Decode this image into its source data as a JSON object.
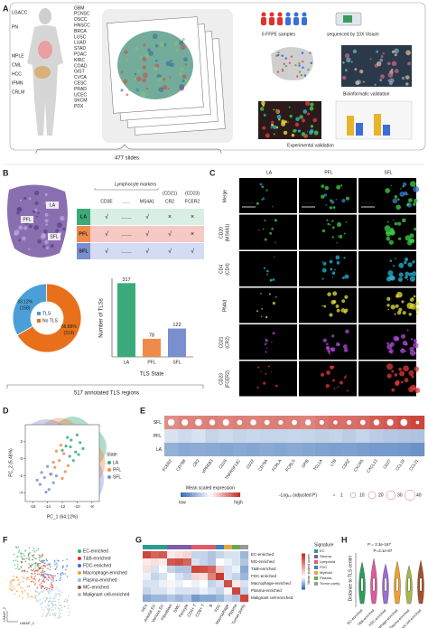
{
  "panel_labels": [
    "A",
    "B",
    "C",
    "D",
    "E",
    "F",
    "G",
    "H"
  ],
  "panel_a": {
    "cancer_types_left": [
      {
        "text": "LGACC",
        "color": "#777777"
      },
      {
        "text": "PN",
        "color": "#777777"
      },
      {
        "text": "MPLE",
        "color": "#777777"
      },
      {
        "text": "CML",
        "color": "#777777"
      },
      {
        "text": "HCC",
        "color": "#777777"
      },
      {
        "text": "IPMN",
        "color": "#3a7fc1"
      },
      {
        "text": "CRLM",
        "color": "#777777"
      }
    ],
    "cancer_types_right": [
      {
        "text": "GBM",
        "color": "#e0312b"
      },
      {
        "text": "PCNSC",
        "color": "#e0312b"
      },
      {
        "text": "OSCC",
        "color": "#e0312b"
      },
      {
        "text": "HNSCC",
        "color": "#777777"
      },
      {
        "text": "BRCA",
        "color": "#777777"
      },
      {
        "text": "LUSC",
        "color": "#f08a24"
      },
      {
        "text": "LUAD",
        "color": "#f08a24"
      },
      {
        "text": "STAD",
        "color": "#777777"
      },
      {
        "text": "PDAC",
        "color": "#3a7fc1"
      },
      {
        "text": "KIRC",
        "color": "#e0312b"
      },
      {
        "text": "COAD",
        "color": "#777777"
      },
      {
        "text": "GIST",
        "color": "#777777"
      },
      {
        "text": "CVCA",
        "color": "#f08a24"
      },
      {
        "text": "CESC",
        "color": "#f08a24"
      },
      {
        "text": "PRAD",
        "color": "#e0312b"
      },
      {
        "text": "UCEC",
        "color": "#f08a24"
      },
      {
        "text": "SKCM",
        "color": "#777777"
      },
      {
        "text": "PDX",
        "color": "#777777"
      }
    ],
    "slides": "477 slides",
    "samples": "6 FFPE samples",
    "sequencing": "sequenced by 10X Visium",
    "bioinformatic": "Bioinformatic validation",
    "experimental": "Experimental validation"
  },
  "panel_b": {
    "tissue_labels": [
      "LA",
      "PFL",
      "SFL"
    ],
    "marker_group": "Lymphocyte markers",
    "marker_aliases": [
      "(CD21)",
      "(CD23)"
    ],
    "markers": [
      "CD3E",
      "......",
      "MS4A1",
      "CR2",
      "FCER2"
    ],
    "table_rows": [
      {
        "state": "LA",
        "cells": [
          "√",
          "......",
          "√",
          "×",
          "×"
        ]
      },
      {
        "state": "PFL",
        "cells": [
          "√",
          "......",
          "√",
          "√",
          "×"
        ]
      },
      {
        "state": "SFL",
        "cells": [
          "√",
          "......",
          "√",
          "√",
          "√"
        ]
      }
    ],
    "state_colors": [
      "#3aaa7a",
      "#f08a4b",
      "#7a8fd0"
    ],
    "row_colors": [
      "#d9efe3",
      "#f6c9c4",
      "#d3dcf3"
    ],
    "summary": "517 annotated TLS regions"
  },
  "panel_c": {
    "columns": [
      "LA",
      "PFL",
      "SFL"
    ],
    "rows": [
      [
        "Merge"
      ],
      [
        "CD20",
        "(MS4A1)"
      ],
      [
        "CD4",
        "(CD4)"
      ],
      [
        "PNAd"
      ],
      [
        "CD21",
        "(CR2)"
      ],
      [
        "CD23",
        "(FCER2)"
      ]
    ],
    "scale_bar": "200μm",
    "stain_colors": [
      "#3fd24a",
      "#3fd24a",
      "#27b6d6",
      "#e6e03a",
      "#b04ad6",
      "#e03a3a"
    ]
  },
  "panel_f": {
    "legend": [
      "EC-enriched",
      "T&B-enriched",
      "FDC-enriched",
      "Macrophage-enriched",
      "Plasma-enriched",
      "MC-enriched",
      "Malignant cell-enriched"
    ],
    "colors": [
      "#2bb673",
      "#e0312b",
      "#3a6fd8",
      "#f39c34",
      "#8ac6e8",
      "#a05a2c",
      "#bbbbbb"
    ],
    "xlabel": "UMAP_1",
    "ylabel": "UMAP_2"
  },
  "panel_h": {
    "p_values": [
      "P = 3.3e-167",
      "P=3.1e-87"
    ],
    "ylabel": "Distance to TLS center",
    "categories": [
      "EC-enriched",
      "T&B-enriched",
      "FDC-enriched",
      "Macrophage-enriched",
      "Plasma-enriched",
      "Malignant cell-enriched"
    ],
    "colors": [
      "#2e9e5b",
      "#e05a9a",
      "#9b6fd0",
      "#f0a030",
      "#a8b84a",
      "#a0522d"
    ]
  },
  "chart_data": [
    {
      "type": "pie",
      "categories": [
        "TLS",
        "No TLS"
      ],
      "values": [
        33.12,
        66.88
      ],
      "value_labels": [
        "33.12%",
        "66.88%"
      ],
      "counts": [
        158,
        319
      ],
      "count_labels": [
        "(158)",
        "(319)"
      ],
      "colors": [
        "#4a9fd8",
        "#e8701a"
      ]
    },
    {
      "type": "bar",
      "categories": [
        "LA",
        "PFL",
        "SFL"
      ],
      "values": [
        317,
        78,
        122
      ],
      "colors": [
        "#3aaa7a",
        "#f08a4b",
        "#7a8fd0"
      ],
      "xlabel": "TLS State",
      "ylabel": "Number of TLSs",
      "ylim": [
        0,
        330
      ]
    },
    {
      "type": "scatter",
      "xlabel": "PC_1 (64.12%)",
      "ylabel": "PC_2 (5.48%)",
      "legend_title": "State",
      "xlim": [
        -17,
        -7
      ],
      "xticks": [
        -16,
        -14,
        -12,
        -10,
        -8
      ],
      "ylim": [
        -5,
        4
      ],
      "yticks": [
        -4,
        -2,
        0,
        2
      ],
      "series": [
        {
          "name": "LA",
          "color": "#3aaa7a",
          "x": [
            -11.5,
            -10.8,
            -10.2,
            -9.6,
            -11,
            -10,
            -9.2,
            -12,
            -10.5,
            -9.8,
            -11.3,
            -10.9
          ],
          "y": [
            1.5,
            2.2,
            0.8,
            1.9,
            0.3,
            2.8,
            1.2,
            1.0,
            -0.2,
            0.5,
            2.5,
            1.4
          ]
        },
        {
          "name": "PFL",
          "color": "#f08a4b",
          "x": [
            -13,
            -12.4,
            -11.8,
            -13.5,
            -12,
            -11.2,
            -12.8,
            -13.2,
            -11.6,
            -12.2
          ],
          "y": [
            -1,
            -0.2,
            0.6,
            -1.8,
            -2.3,
            -0.8,
            0.9,
            -0.4,
            -1.5,
            1.6
          ]
        },
        {
          "name": "SFL",
          "color": "#7a8fd0",
          "x": [
            -15,
            -14.4,
            -13.8,
            -14.8,
            -13.2,
            -14,
            -15.4,
            -13.6,
            -14.2,
            -12.8
          ],
          "y": [
            -3,
            -2.2,
            -3.6,
            -1.6,
            -2.8,
            -0.9,
            -2.5,
            -1.8,
            -3.9,
            -2.0
          ]
        }
      ]
    },
    {
      "type": "heatmap",
      "rows": [
        "SFL",
        "PFL",
        "LA"
      ],
      "columns": [
        "FCER2",
        "CD79B",
        "CR2",
        "VPREB3",
        "CD19",
        "TNFRSF13C",
        "CD22",
        "CD79A",
        "FCRLA",
        "FCRLS",
        "SPIB",
        "TCL1A",
        "LTB",
        "CD52",
        "CXCR5",
        "CXCL13",
        "CD27",
        "CCL19",
        "CCL21"
      ],
      "values": [
        [
          0.55,
          0.6,
          0.6,
          0.62,
          0.6,
          0.62,
          0.6,
          0.62,
          0.63,
          0.62,
          0.6,
          0.65,
          0.7,
          0.7,
          0.72,
          0.78,
          0.8,
          0.85,
          0.9
        ],
        [
          -0.2,
          -0.25,
          -0.2,
          -0.3,
          -0.25,
          -0.3,
          -0.28,
          -0.3,
          -0.3,
          -0.28,
          -0.3,
          -0.32,
          -0.3,
          -0.35,
          -0.3,
          -0.35,
          -0.38,
          -0.4,
          -0.42
        ],
        [
          -0.55,
          -0.6,
          -0.58,
          -0.6,
          -0.62,
          -0.6,
          -0.62,
          -0.6,
          -0.62,
          -0.6,
          -0.62,
          -0.64,
          -0.66,
          -0.65,
          -0.68,
          -0.7,
          -0.7,
          -0.72,
          -0.75
        ]
      ],
      "dot_values": [
        20,
        18,
        20,
        15,
        18,
        12,
        15,
        12,
        10,
        12,
        15,
        10,
        8,
        10,
        12,
        15,
        18,
        20,
        5
      ],
      "vlim": [
        -1,
        1
      ],
      "colorbar_title": "Mean scaled expression",
      "colorbar_low": "low",
      "colorbar_high": "high",
      "size_title": "-Log₁₀ (adjusted P)",
      "size_ticks": [
        1,
        10,
        20,
        30,
        40
      ]
    },
    {
      "type": "heatmap",
      "rows": [
        "EC-enriched",
        "MC-enriched",
        "T&B-enriched",
        "FDC-enriched",
        "Macrophage-enriched",
        "Plasma-enriched",
        "Malignant cell-enriched"
      ],
      "columns": [
        "HEV",
        "Arterial EC",
        "Venous EC",
        "Fibroblast",
        "SMC",
        "Pericyte",
        "CD4+ T",
        "CD8+ T",
        "B",
        "FDC",
        "Macrophage",
        "Plasma",
        "Tumor purity"
      ],
      "column_colors": [
        "#2a9d8f",
        "#2a9d8f",
        "#2a9d8f",
        "#7b5ea7",
        "#7b5ea7",
        "#7b5ea7",
        "#e05a6d",
        "#e05a6d",
        "#e05a6d",
        "#3f7fbf",
        "#e8a33d",
        "#6aa84f",
        "#999999"
      ],
      "values": [
        [
          1.8,
          1.5,
          1.6,
          0.2,
          0.3,
          0.4,
          -0.3,
          -0.3,
          -0.4,
          -0.3,
          -0.2,
          -0.2,
          -0.5
        ],
        [
          0.2,
          0.3,
          0.2,
          1.6,
          1.7,
          1.5,
          -0.2,
          -0.3,
          -0.4,
          0.0,
          -0.1,
          -0.2,
          -0.4
        ],
        [
          0.3,
          -0.2,
          0.0,
          -0.3,
          -0.4,
          -0.4,
          1.8,
          1.7,
          1.5,
          0.5,
          -0.2,
          -0.1,
          -0.6
        ],
        [
          -0.1,
          -0.3,
          -0.2,
          0.0,
          -0.2,
          -0.3,
          0.4,
          0.3,
          1.2,
          1.9,
          -0.2,
          -0.3,
          -0.5
        ],
        [
          -0.2,
          -0.2,
          -0.1,
          0.1,
          -0.1,
          0.0,
          -0.1,
          0.0,
          -0.3,
          -0.2,
          1.7,
          0.2,
          -0.2
        ],
        [
          -0.3,
          -0.2,
          -0.2,
          -0.1,
          -0.2,
          -0.2,
          -0.2,
          -0.1,
          -0.2,
          -0.3,
          0.1,
          1.8,
          -0.3
        ],
        [
          -0.6,
          -0.5,
          -0.5,
          -0.4,
          -0.5,
          -0.4,
          -0.7,
          -0.6,
          -0.6,
          -0.5,
          -0.3,
          -0.4,
          1.8
        ]
      ],
      "vlim": [
        -1,
        2
      ],
      "colorbar_title": "Mean scaled score",
      "legend_title": "Signature",
      "signature_names": [
        "EC",
        "Stroma",
        "Lymphoid",
        "FDC",
        "Myeloid",
        "Plasma",
        "Tumor purity"
      ],
      "signature_colors": [
        "#2a9d8f",
        "#7b5ea7",
        "#e05a6d",
        "#3f7fbf",
        "#e8a33d",
        "#6aa84f",
        "#999999"
      ]
    }
  ]
}
